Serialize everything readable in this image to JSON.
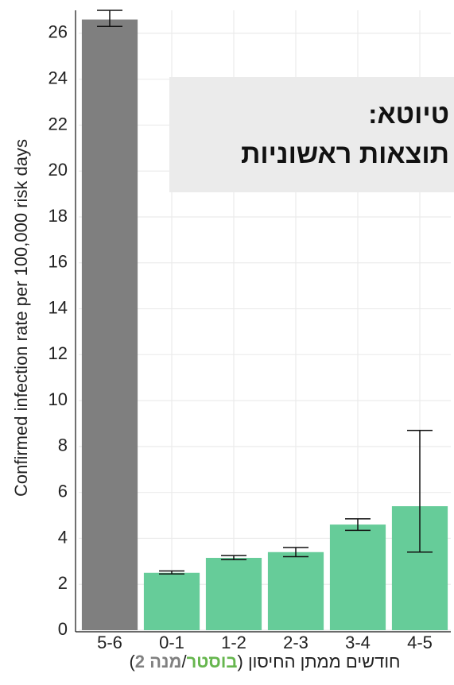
{
  "chart_data": {
    "type": "bar",
    "y_label": "Confirmed infection rate per 100,000 risk days",
    "x_label": [
      "חודשים ממתן החיסון (",
      "בוסטר",
      "/",
      "מנה 2",
      ")"
    ],
    "x_label_colors": [
      "#222222",
      "#66b64e",
      "#222222",
      "#808080",
      "#222222"
    ],
    "annotation": [
      "טיוטא:",
      "תוצאות ראשוניות"
    ],
    "categories": [
      "5-6",
      "0-1",
      "1-2",
      "2-3",
      "3-4",
      "4-5"
    ],
    "values": [
      26.6,
      2.5,
      3.15,
      3.4,
      4.6,
      5.4
    ],
    "error_low": [
      26.3,
      2.45,
      3.07,
      3.2,
      4.35,
      3.4
    ],
    "error_high": [
      27.0,
      2.58,
      3.25,
      3.6,
      4.85,
      8.7
    ],
    "colors": [
      "#7f7f7f",
      "#66cc99",
      "#66cc99",
      "#66cc99",
      "#66cc99",
      "#66cc99"
    ],
    "ylim": [
      0,
      27
    ],
    "yticks": [
      0,
      2,
      4,
      6,
      8,
      10,
      12,
      14,
      16,
      18,
      20,
      22,
      24,
      26
    ],
    "grid": true
  }
}
